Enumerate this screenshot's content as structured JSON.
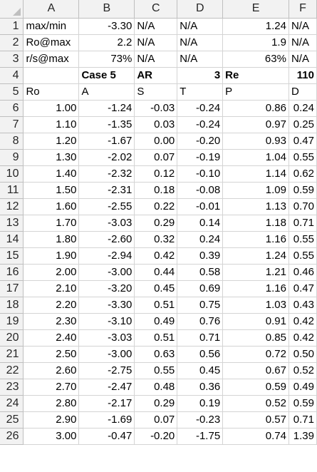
{
  "columns": [
    "A",
    "B",
    "C",
    "D",
    "E",
    "F"
  ],
  "rows": [
    {
      "num": "1",
      "cells": [
        "max/min",
        "-3.30",
        "N/A",
        "N/A",
        "1.24",
        "N/A"
      ]
    },
    {
      "num": "2",
      "cells": [
        "Ro@max",
        "2.2",
        "N/A",
        "N/A",
        "1.9",
        "N/A"
      ]
    },
    {
      "num": "3",
      "cells": [
        "r/s@max",
        "73%",
        "N/A",
        "N/A",
        "63%",
        "N/A"
      ]
    },
    {
      "num": "4",
      "cells": [
        "",
        "Case 5",
        "AR",
        "3",
        "Re",
        "110"
      ]
    },
    {
      "num": "5",
      "cells": [
        "Ro",
        "A",
        "S",
        "T",
        "P",
        "D"
      ]
    },
    {
      "num": "6",
      "cells": [
        "1.00",
        "-1.24",
        "-0.03",
        "-0.24",
        "0.86",
        "0.24"
      ]
    },
    {
      "num": "7",
      "cells": [
        "1.10",
        "-1.35",
        "0.03",
        "-0.24",
        "0.97",
        "0.25"
      ]
    },
    {
      "num": "8",
      "cells": [
        "1.20",
        "-1.67",
        "0.00",
        "-0.20",
        "0.93",
        "0.47"
      ]
    },
    {
      "num": "9",
      "cells": [
        "1.30",
        "-2.02",
        "0.07",
        "-0.19",
        "1.04",
        "0.55"
      ]
    },
    {
      "num": "10",
      "cells": [
        "1.40",
        "-2.32",
        "0.12",
        "-0.10",
        "1.14",
        "0.62"
      ]
    },
    {
      "num": "11",
      "cells": [
        "1.50",
        "-2.31",
        "0.18",
        "-0.08",
        "1.09",
        "0.59"
      ]
    },
    {
      "num": "12",
      "cells": [
        "1.60",
        "-2.55",
        "0.22",
        "-0.01",
        "1.13",
        "0.70"
      ]
    },
    {
      "num": "13",
      "cells": [
        "1.70",
        "-3.03",
        "0.29",
        "0.14",
        "1.18",
        "0.71"
      ]
    },
    {
      "num": "14",
      "cells": [
        "1.80",
        "-2.60",
        "0.32",
        "0.24",
        "1.16",
        "0.55"
      ]
    },
    {
      "num": "15",
      "cells": [
        "1.90",
        "-2.94",
        "0.42",
        "0.39",
        "1.24",
        "0.55"
      ]
    },
    {
      "num": "16",
      "cells": [
        "2.00",
        "-3.00",
        "0.44",
        "0.58",
        "1.21",
        "0.46"
      ]
    },
    {
      "num": "17",
      "cells": [
        "2.10",
        "-3.20",
        "0.45",
        "0.69",
        "1.16",
        "0.47"
      ]
    },
    {
      "num": "18",
      "cells": [
        "2.20",
        "-3.30",
        "0.51",
        "0.75",
        "1.03",
        "0.43"
      ]
    },
    {
      "num": "19",
      "cells": [
        "2.30",
        "-3.10",
        "0.49",
        "0.76",
        "0.91",
        "0.42"
      ]
    },
    {
      "num": "20",
      "cells": [
        "2.40",
        "-3.03",
        "0.51",
        "0.71",
        "0.85",
        "0.42"
      ]
    },
    {
      "num": "21",
      "cells": [
        "2.50",
        "-3.00",
        "0.63",
        "0.56",
        "0.72",
        "0.50"
      ]
    },
    {
      "num": "22",
      "cells": [
        "2.60",
        "-2.75",
        "0.55",
        "0.45",
        "0.67",
        "0.52"
      ]
    },
    {
      "num": "23",
      "cells": [
        "2.70",
        "-2.47",
        "0.48",
        "0.36",
        "0.59",
        "0.49"
      ]
    },
    {
      "num": "24",
      "cells": [
        "2.80",
        "-2.17",
        "0.29",
        "0.19",
        "0.52",
        "0.59"
      ]
    },
    {
      "num": "25",
      "cells": [
        "2.90",
        "-1.69",
        "0.07",
        "-0.23",
        "0.57",
        "0.71"
      ]
    },
    {
      "num": "26",
      "cells": [
        "3.00",
        "-0.47",
        "-0.20",
        "-1.75",
        "0.74",
        "1.39"
      ]
    }
  ]
}
